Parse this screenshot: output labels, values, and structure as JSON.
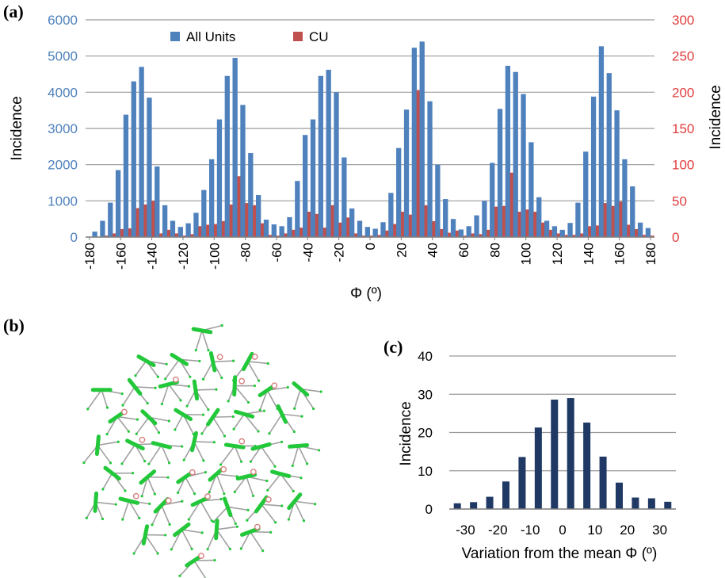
{
  "panel_labels": {
    "a": "(a)",
    "b": "(b)",
    "c": "(c)"
  },
  "colors": {
    "all_units": "#4f81bd",
    "cu": "#c0504d",
    "left_axis_ticks": "#4f81bd",
    "right_axis_ticks": "#e03c3c",
    "histogram_bars": "#1f3864",
    "green_bond": "#22c83a",
    "gray_bond": "#a0a0a0",
    "atom_outline": "#d88080"
  },
  "chart_data": [
    {
      "type": "bar",
      "panel": "a",
      "xlabel": "Φ (º)",
      "ylabel": "Incidence",
      "ylabel_right": "Incidence",
      "ylim": [
        0,
        6000
      ],
      "ylim_right": [
        0,
        300
      ],
      "yticks": [
        "0",
        "1000",
        "2000",
        "3000",
        "4000",
        "5000",
        "6000"
      ],
      "yticks_right": [
        "0",
        "50",
        "100",
        "150",
        "200",
        "250",
        "300"
      ],
      "xticks": [
        "-180",
        "-160",
        "-140",
        "-120",
        "-100",
        "-80",
        "-60",
        "-40",
        "-20",
        "0",
        "20",
        "40",
        "60",
        "80",
        "100",
        "120",
        "140",
        "160",
        "180"
      ],
      "grid": true,
      "legend_position": "top-left",
      "x": [
        -180,
        -175,
        -170,
        -165,
        -160,
        -155,
        -150,
        -145,
        -140,
        -135,
        -130,
        -125,
        -120,
        -115,
        -110,
        -105,
        -100,
        -95,
        -90,
        -85,
        -80,
        -75,
        -70,
        -65,
        -60,
        -55,
        -50,
        -45,
        -40,
        -35,
        -30,
        -25,
        -20,
        -15,
        -10,
        -5,
        0,
        5,
        10,
        15,
        20,
        25,
        30,
        35,
        40,
        45,
        50,
        55,
        60,
        65,
        70,
        75,
        80,
        85,
        90,
        95,
        100,
        105,
        110,
        115,
        120,
        125,
        130,
        135,
        140,
        145,
        150,
        155,
        160,
        165,
        170,
        175,
        180
      ],
      "series": [
        {
          "name": "All Units",
          "axis": "left",
          "values": [
            0,
            150,
            450,
            950,
            1850,
            3380,
            4300,
            4700,
            3850,
            1950,
            880,
            450,
            280,
            380,
            670,
            1300,
            2150,
            3250,
            4450,
            4950,
            3650,
            2320,
            1160,
            480,
            350,
            300,
            550,
            1550,
            2820,
            3250,
            4450,
            4620,
            4000,
            2200,
            790,
            450,
            280,
            230,
            410,
            1220,
            2460,
            3520,
            5230,
            5400,
            3750,
            2000,
            1050,
            500,
            210,
            300,
            600,
            1000,
            2050,
            3540,
            4730,
            4560,
            3950,
            2620,
            1100,
            450,
            300,
            200,
            390,
            950,
            2360,
            3880,
            5270,
            4530,
            3500,
            2150,
            1400,
            400,
            250
          ]
        },
        {
          "name": "CU",
          "axis": "right",
          "values": [
            0,
            0,
            2,
            5,
            11,
            12,
            40,
            45,
            50,
            5,
            10,
            5,
            2,
            4,
            15,
            17,
            18,
            22,
            45,
            84,
            47,
            44,
            19,
            3,
            2,
            5,
            10,
            13,
            35,
            32,
            13,
            44,
            20,
            27,
            5,
            2,
            2,
            3,
            9,
            18,
            35,
            31,
            203,
            44,
            22,
            11,
            6,
            9,
            2,
            5,
            4,
            10,
            42,
            43,
            89,
            35,
            38,
            35,
            20,
            10,
            5,
            3,
            3,
            5,
            15,
            16,
            47,
            43,
            49,
            17,
            11,
            3,
            2
          ]
        }
      ]
    },
    {
      "type": "bar",
      "panel": "c",
      "xlabel": "Variation from the mean Φ (º)",
      "ylabel": "Incidence",
      "ylim": [
        0,
        40
      ],
      "yticks": [
        "0",
        "10",
        "20",
        "30",
        "40"
      ],
      "xticks": [
        "-30",
        "-20",
        "-10",
        "0",
        "10",
        "20",
        "30"
      ],
      "grid": true,
      "x": [
        -32.5,
        -27.5,
        -22.5,
        -17.5,
        -12.5,
        -7.5,
        -2.5,
        2.5,
        7.5,
        12.5,
        17.5,
        22.5,
        27.5,
        32.5
      ],
      "values": [
        1.5,
        1.8,
        3.2,
        7.2,
        13.6,
        21.3,
        28.6,
        29.0,
        22.6,
        13.7,
        6.9,
        3.0,
        2.8,
        1.9
      ]
    }
  ]
}
